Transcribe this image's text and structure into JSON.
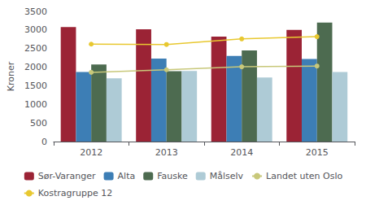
{
  "chart_data": {
    "type": "bar",
    "categories": [
      "2012",
      "2013",
      "2014",
      "2015"
    ],
    "series": [
      {
        "name": "Sør-Varanger",
        "type": "bar",
        "color": "#9B2335",
        "values": [
          3080,
          3020,
          2820,
          3000
        ]
      },
      {
        "name": "Alta",
        "type": "bar",
        "color": "#3D7EB5",
        "values": [
          1870,
          2230,
          2300,
          2220
        ]
      },
      {
        "name": "Fauske",
        "type": "bar",
        "color": "#4D6B50",
        "values": [
          2070,
          1890,
          2450,
          3200
        ]
      },
      {
        "name": "Målselv",
        "type": "bar",
        "color": "#AECBD6",
        "values": [
          1700,
          1900,
          1720,
          1870
        ]
      },
      {
        "name": "Landet uten Oslo",
        "type": "line",
        "marker": "circle",
        "color": "#C8C87A",
        "values": [
          1860,
          1930,
          2010,
          2030
        ]
      },
      {
        "name": "Kostragruppe 12",
        "type": "line",
        "marker": "circle",
        "color": "#E8C830",
        "values": [
          2620,
          2610,
          2760,
          2820
        ]
      }
    ],
    "ylabel": "Kroner",
    "ylim": [
      0,
      3500
    ],
    "yticks": [
      0,
      500,
      1000,
      1500,
      2000,
      2500,
      3000,
      3500
    ],
    "grid": false,
    "legend": "bottom"
  }
}
